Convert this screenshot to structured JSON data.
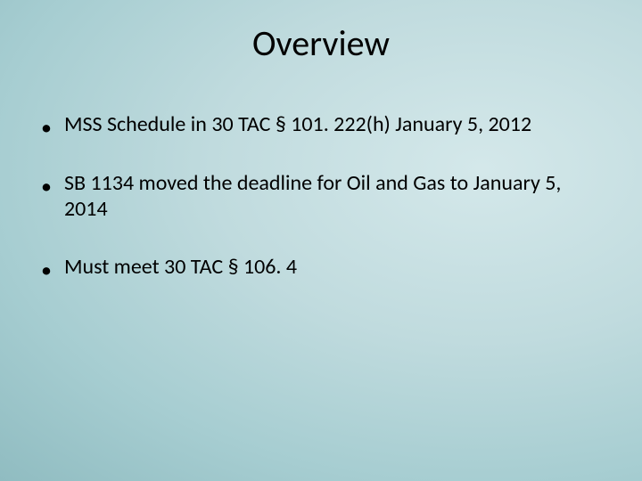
{
  "slide": {
    "title": "Overview",
    "title_fontsize": 40,
    "body_fontsize": 24,
    "text_color": "#000000",
    "background": {
      "type": "radial-gradient",
      "center_color": "#d4e8ea",
      "edge_color": "#6fa1a6"
    },
    "bullets": [
      {
        "text": "MSS Schedule in 30 TAC § 101. 222(h)  January 5, 2012"
      },
      {
        "text": "SB 1134 moved the deadline for Oil and Gas to January 5, 2014"
      },
      {
        "text": "Must meet 30 TAC § 106. 4"
      }
    ],
    "bullet_marker": "•"
  }
}
